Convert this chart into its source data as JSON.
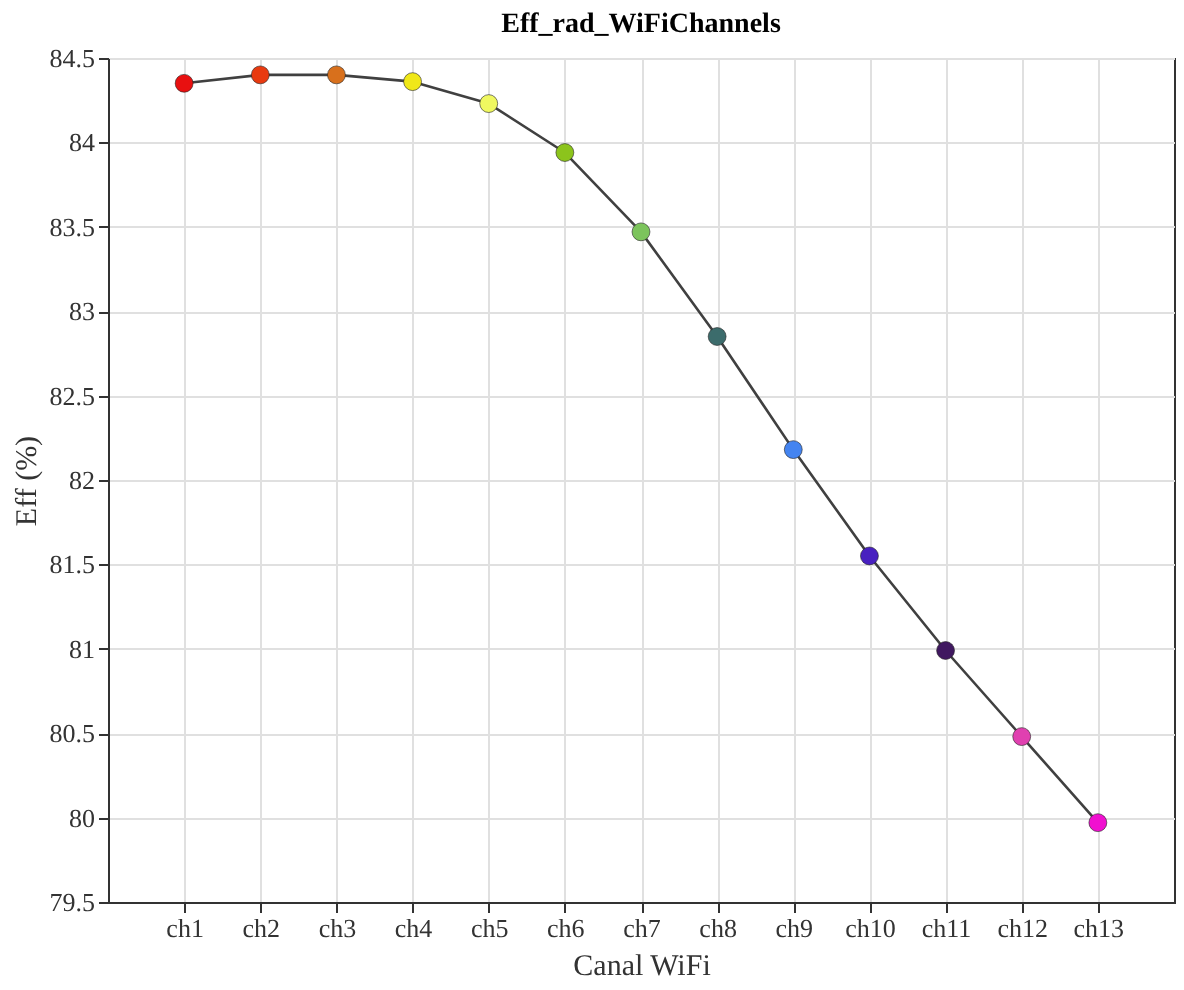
{
  "chart_data": {
    "type": "line",
    "title": "Eff_rad_WiFiChannels",
    "xlabel": "Canal WiFi",
    "ylabel": "Eff (%)",
    "categories": [
      "ch1",
      "ch2",
      "ch3",
      "ch4",
      "ch5",
      "ch6",
      "ch7",
      "ch8",
      "ch9",
      "ch10",
      "ch11",
      "ch12",
      "ch13"
    ],
    "ylim": [
      79.5,
      84.5
    ],
    "yticks": [
      79.5,
      80,
      80.5,
      81,
      81.5,
      82,
      82.5,
      83,
      83.5,
      84,
      84.5
    ],
    "series": [
      {
        "color": "#404040",
        "values": [
          84.35,
          84.4,
          84.4,
          84.36,
          84.23,
          83.94,
          83.47,
          82.85,
          82.18,
          81.55,
          80.99,
          80.48,
          79.97
        ],
        "colors": [
          "#e81010",
          "#e83a10",
          "#d8701c",
          "#f0e818",
          "#f0f860",
          "#8cc41c",
          "#7cc45c",
          "#3c6c6c",
          "#4484f0",
          "#4820c0",
          "#401860",
          "#e040b0",
          "#f010d0"
        ]
      }
    ],
    "marker": "circle",
    "line_style": "solid",
    "grid": true
  }
}
